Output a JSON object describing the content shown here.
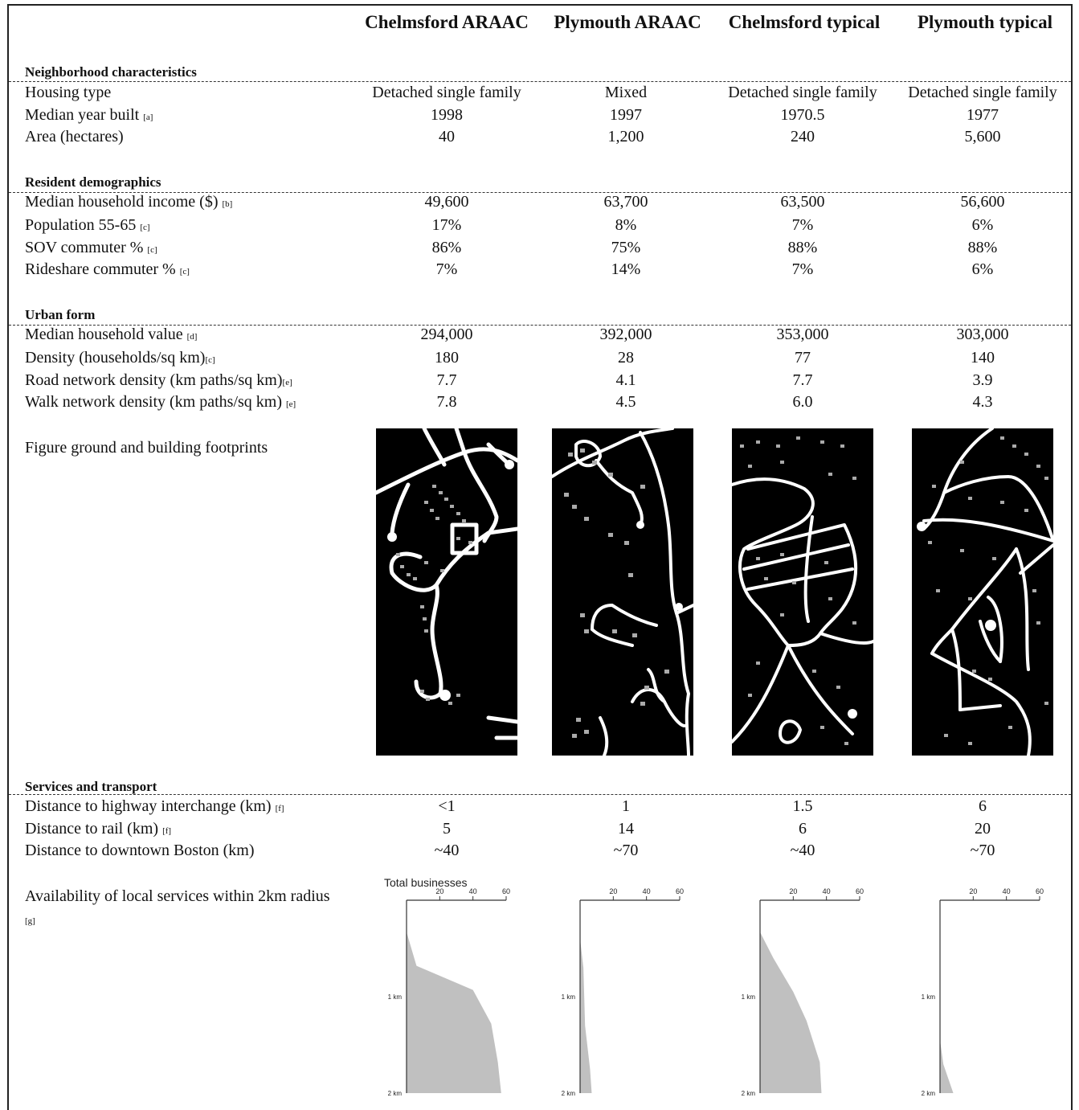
{
  "columns": [
    "Chelmsford ARAAC",
    "Plymouth ARAAC",
    "Chelmsford typical",
    "Plymouth typical"
  ],
  "sections": {
    "neighborhood": "Neighborhood characteristics",
    "demographics": "Resident demographics",
    "urban_form": "Urban form",
    "services": "Services and transport"
  },
  "rows": {
    "housing_type": {
      "label": "Housing type",
      "note": "",
      "values": [
        "Detached single family",
        "Mixed",
        "Detached single family",
        "Detached single family"
      ]
    },
    "year_built": {
      "label": "Median year built ",
      "note": "[a]",
      "values": [
        "1998",
        "1997",
        "1970.5",
        "1977"
      ]
    },
    "area": {
      "label": "Area (hectares)",
      "note": "",
      "values": [
        "40",
        "1,200",
        "240",
        "5,600"
      ]
    },
    "income": {
      "label": "Median household income ($) ",
      "note": "[b]",
      "values": [
        "49,600",
        "63,700",
        "63,500",
        "56,600"
      ]
    },
    "pop_55_65": {
      "label": "Population 55-65 ",
      "note": "[c]",
      "values": [
        "17%",
        "8%",
        "7%",
        "6%"
      ]
    },
    "sov": {
      "label": "SOV commuter % ",
      "note": "[c]",
      "values": [
        "86%",
        "75%",
        "88%",
        "88%"
      ]
    },
    "rideshare": {
      "label": "Rideshare commuter % ",
      "note": "[c]",
      "values": [
        "7%",
        "14%",
        "7%",
        "6%"
      ]
    },
    "home_value": {
      "label": "Median household value ",
      "note": "[d]",
      "values": [
        "294,000",
        "392,000",
        "353,000",
        "303,000"
      ]
    },
    "density": {
      "label": "Density (households/sq km)",
      "note": "[c]",
      "values": [
        "180",
        "28",
        "77",
        "140"
      ]
    },
    "road_density": {
      "label": "Road network density (km paths/sq km)",
      "note": "[e]",
      "values": [
        "7.7",
        "4.1",
        "7.7",
        "3.9"
      ]
    },
    "walk_density": {
      "label": "Walk network density (km paths/sq km) ",
      "note": "[e]",
      "values": [
        "7.8",
        "4.5",
        "6.0",
        "4.3"
      ]
    },
    "highway": {
      "label": "Distance to highway interchange (km) ",
      "note": "[f]",
      "values": [
        "<1",
        "1",
        "1.5",
        "6"
      ]
    },
    "rail": {
      "label": "Distance to rail (km) ",
      "note": "[f]",
      "values": [
        "5",
        "14",
        "6",
        "20"
      ]
    },
    "downtown": {
      "label": "Distance to downtown Boston (km)",
      "note": "",
      "values": [
        "~40",
        "~70",
        "~40",
        "~70"
      ]
    }
  },
  "figure_ground": {
    "label": "Figure ground and building footprints"
  },
  "local_services": {
    "label": "Availability of local services within 2km radius ",
    "note": "[g]"
  },
  "chart_data": [
    {
      "type": "area",
      "title": "Total businesses",
      "x_ticks": [
        20,
        40,
        60
      ],
      "y_ticks": [
        "1 km",
        "2 km"
      ],
      "xlim": [
        0,
        60
      ],
      "ylim": [
        0,
        2
      ],
      "color": "#c0c0c0",
      "points": [
        [
          0,
          0.33
        ],
        [
          6,
          0.68
        ],
        [
          40,
          0.93
        ],
        [
          51,
          1.28
        ],
        [
          55,
          1.68
        ],
        [
          57,
          2.0
        ]
      ]
    },
    {
      "type": "area",
      "title": "",
      "x_ticks": [
        20,
        40,
        60
      ],
      "y_ticks": [
        "1 km",
        "2 km"
      ],
      "xlim": [
        0,
        60
      ],
      "ylim": [
        0,
        2
      ],
      "color": "#c0c0c0",
      "points": [
        [
          0,
          0.4
        ],
        [
          2,
          0.7
        ],
        [
          3,
          1.3
        ],
        [
          6,
          1.75
        ],
        [
          7,
          2.0
        ]
      ]
    },
    {
      "type": "area",
      "title": "",
      "x_ticks": [
        20,
        40,
        60
      ],
      "y_ticks": [
        "1 km",
        "2 km"
      ],
      "xlim": [
        0,
        60
      ],
      "ylim": [
        0,
        2
      ],
      "color": "#c0c0c0",
      "points": [
        [
          0,
          0.33
        ],
        [
          8,
          0.6
        ],
        [
          20,
          0.95
        ],
        [
          28,
          1.25
        ],
        [
          36,
          1.68
        ],
        [
          37,
          2.0
        ]
      ]
    },
    {
      "type": "area",
      "title": "",
      "x_ticks": [
        20,
        40,
        60
      ],
      "y_ticks": [
        "1 km",
        "2 km"
      ],
      "xlim": [
        0,
        60
      ],
      "ylim": [
        0,
        2
      ],
      "color": "#c0c0c0",
      "points": [
        [
          0,
          1.45
        ],
        [
          2,
          1.7
        ],
        [
          5,
          1.85
        ],
        [
          8,
          2.0
        ]
      ]
    }
  ]
}
